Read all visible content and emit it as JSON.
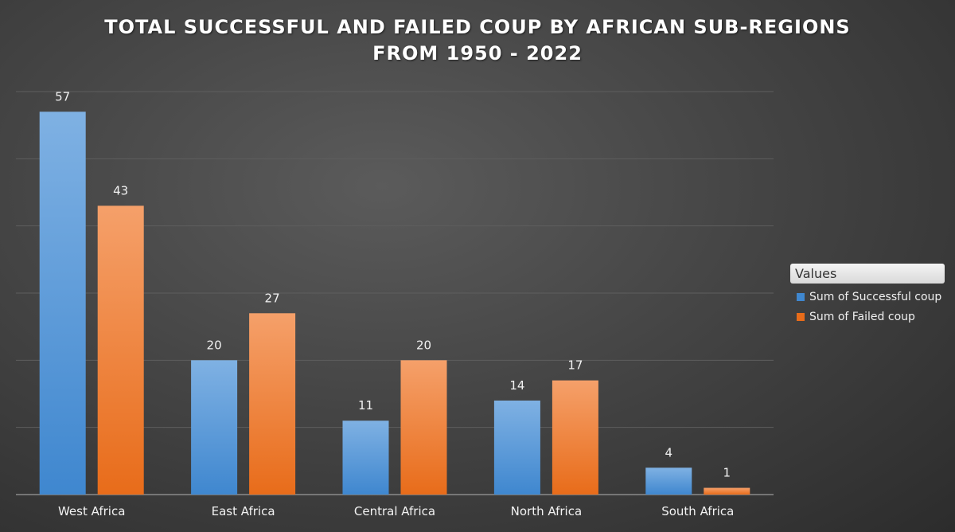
{
  "title_lines": [
    "TOTAL SUCCESSFUL AND FAILED COUP BY AFRICAN SUB-REGIONS",
    "FROM 1950 - 2022"
  ],
  "legend": {
    "title": "Values",
    "items": [
      "Sum of Successful coup",
      "Sum of Failed coup"
    ]
  },
  "colors": {
    "successful_top": "#7fb1e3",
    "successful_bottom": "#3f87cf",
    "failed_top": "#f5a06a",
    "failed_bottom": "#e86c1a"
  },
  "chart_data": {
    "type": "bar",
    "categories": [
      "West Africa",
      "East Africa",
      "Central Africa",
      "North Africa",
      "South Africa"
    ],
    "series": [
      {
        "name": "Sum of Successful coup",
        "values": [
          57,
          20,
          11,
          14,
          4
        ]
      },
      {
        "name": "Sum of Failed coup",
        "values": [
          43,
          27,
          20,
          17,
          1
        ]
      }
    ],
    "title": "TOTAL SUCCESSFUL AND FAILED COUP BY AFRICAN SUB-REGIONS FROM 1950 - 2022",
    "xlabel": "",
    "ylabel": "",
    "ylim": [
      0,
      60
    ],
    "grid": true,
    "legend_position": "right"
  }
}
